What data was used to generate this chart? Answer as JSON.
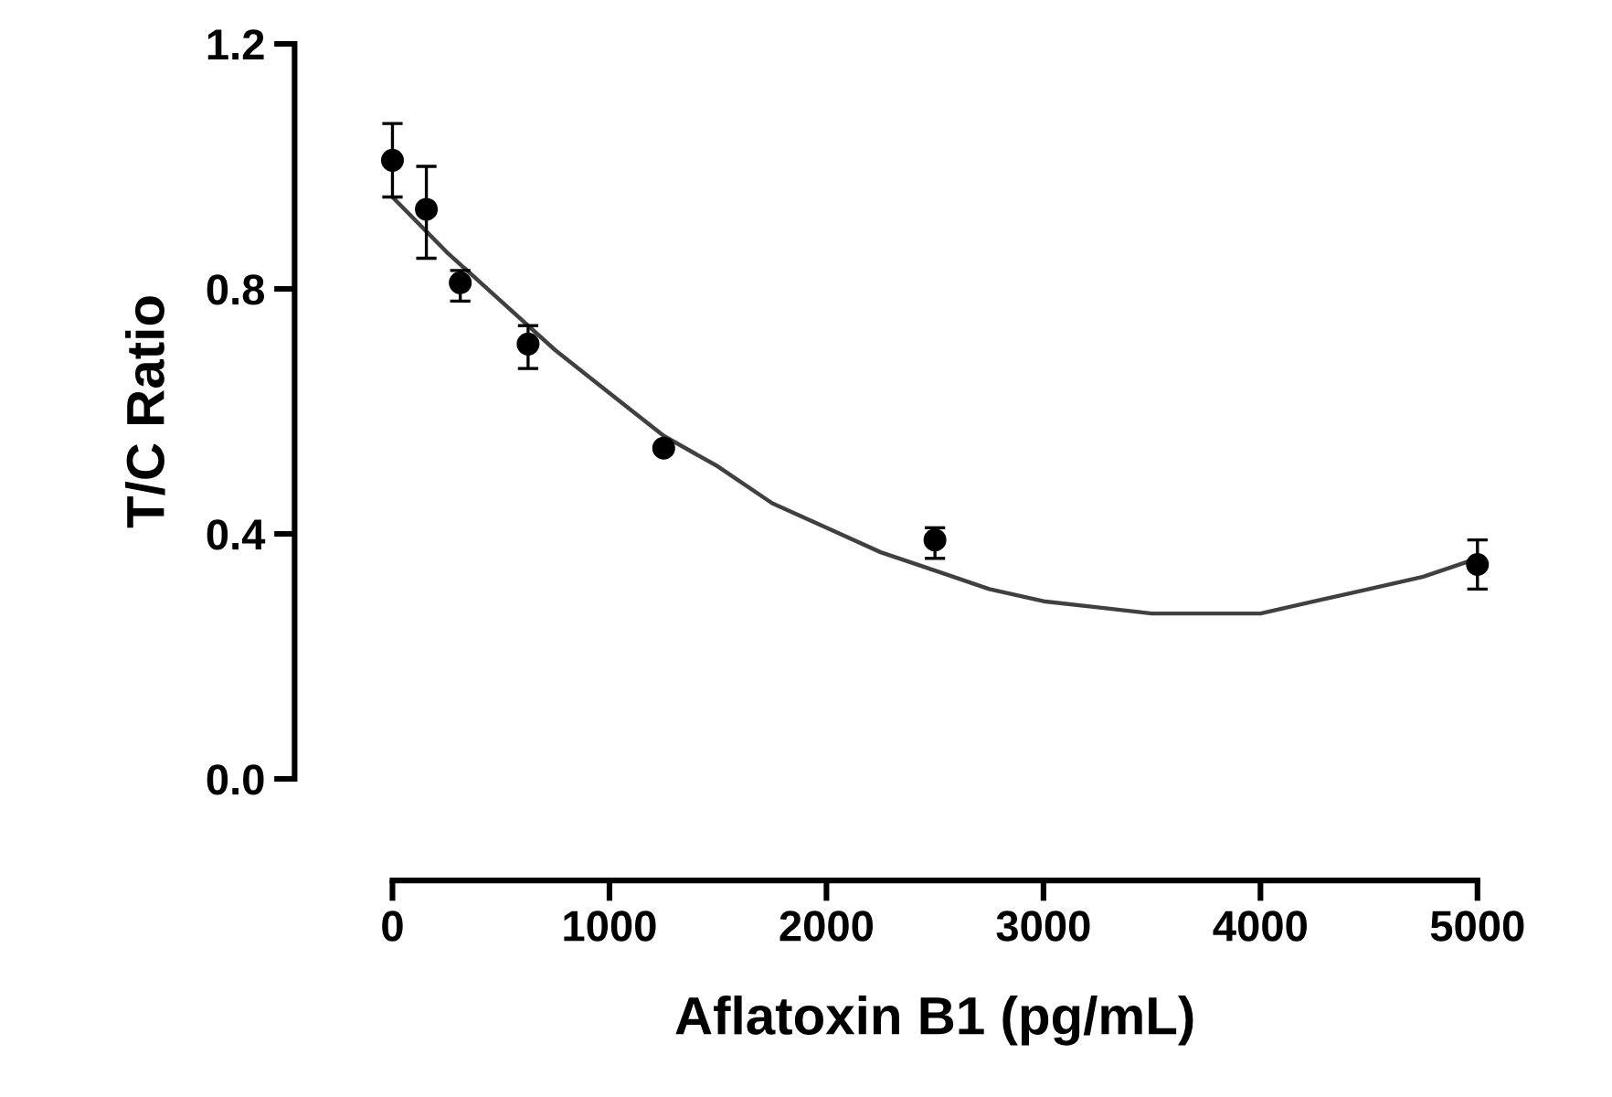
{
  "chart_data": {
    "type": "scatter",
    "xlabel": "Aflatoxin B1 (pg/mL)",
    "ylabel": "T/C Ratio",
    "xlim": [
      0,
      5000
    ],
    "xticks": [
      0,
      1000,
      2000,
      3000,
      4000,
      5000
    ],
    "ylim": [
      0,
      1.2
    ],
    "yticks": [
      {
        "value": 0,
        "label": "0.0"
      },
      {
        "value": 0.4,
        "label": "0.4"
      },
      {
        "value": 0.8,
        "label": "0.8"
      },
      {
        "value": 1.2,
        "label": "1.2"
      }
    ],
    "grid": false,
    "legend": false,
    "marker": "circle",
    "series": [
      {
        "color": "#000000",
        "x": [
          0,
          156.25,
          312.5,
          625,
          1250,
          2500,
          5000
        ],
        "values": [
          1.01,
          0.93,
          0.81,
          0.71,
          0.54,
          0.39,
          0.35
        ],
        "errors": [
          [
            0.95,
            1.07
          ],
          [
            0.85,
            1.0
          ],
          [
            0.78,
            0.83
          ],
          [
            0.67,
            0.74
          ],
          null,
          [
            0.36,
            0.41
          ],
          [
            0.31,
            0.39
          ]
        ]
      },
      {
        "type": "line",
        "color": "#404040",
        "line_style": "solid",
        "marker": "none",
        "x": [
          0,
          250,
          500,
          750,
          1000,
          1250,
          1500,
          1750,
          2000,
          2250,
          2500,
          2750,
          3000,
          3250,
          3500,
          3750,
          4000,
          4250,
          4500,
          4750,
          5000
        ],
        "values": [
          0.95,
          0.86,
          0.78,
          0.7,
          0.63,
          0.56,
          0.51,
          0.45,
          0.41,
          0.37,
          0.34,
          0.31,
          0.29,
          0.28,
          0.27,
          0.27,
          0.27,
          0.29,
          0.31,
          0.33,
          0.36
        ]
      }
    ]
  }
}
